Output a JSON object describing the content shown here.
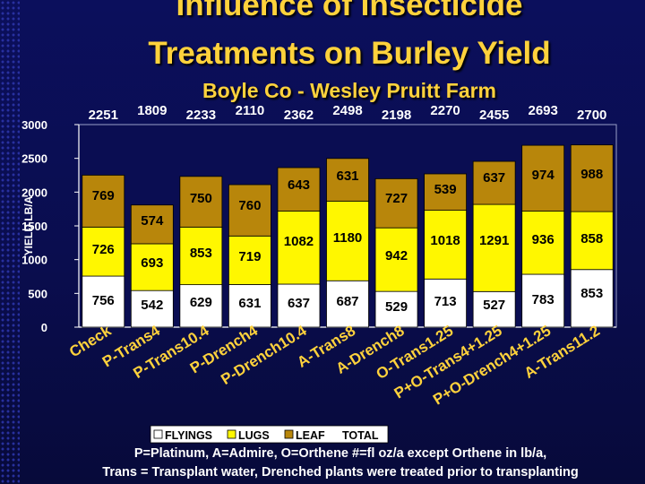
{
  "title_line1": "Influence of Insecticide",
  "title_line2": "Treatments on Burley Yield",
  "subtitle": "Boyle Co - Wesley Pruitt Farm",
  "footnote_line1": "P=Platinum, A=Admire, O=Orthene #=fl oz/a except Orthene in lb/a,",
  "footnote_line2": "Trans = Transplant water, Drenched plants were treated prior to transplanting",
  "colors": {
    "flyings": "#ffffff",
    "lugs": "#fff700",
    "leaf": "#b8860b",
    "background": "#0b0f5c",
    "title": "#ffd23c"
  },
  "chart_data": {
    "type": "bar",
    "stacked": true,
    "ylabel": "YIELD LB/A",
    "xlabel": "",
    "ylim": [
      0,
      3000
    ],
    "yticks": [
      0,
      500,
      1000,
      1500,
      2000,
      2500,
      3000
    ],
    "grid": false,
    "categories": [
      "Check",
      "P-Trans4",
      "P-Trans10.4",
      "P-Drench4",
      "P-Drench10.4",
      "A-Trans8",
      "A-Drench8",
      "O-Trans1.25",
      "P+O-Trans4+1.25",
      "P+O-Drench4+1.25",
      "A-Trans11.2"
    ],
    "series": [
      {
        "name": "FLYINGS",
        "values": [
          756,
          542,
          629,
          631,
          637,
          687,
          529,
          713,
          527,
          783,
          853
        ]
      },
      {
        "name": "LUGS",
        "values": [
          726,
          693,
          853,
          719,
          1082,
          1180,
          942,
          1018,
          1291,
          936,
          858
        ]
      },
      {
        "name": "LEAF",
        "values": [
          769,
          574,
          750,
          760,
          643,
          631,
          727,
          539,
          637,
          974,
          988
        ]
      }
    ],
    "totals": [
      2251,
      1809,
      2233,
      2110,
      2362,
      2498,
      2198,
      2270,
      2455,
      2693,
      2700
    ],
    "legend": [
      "FLYINGS",
      "LUGS",
      "LEAF",
      "TOTAL"
    ],
    "legend_position": "bottom"
  }
}
